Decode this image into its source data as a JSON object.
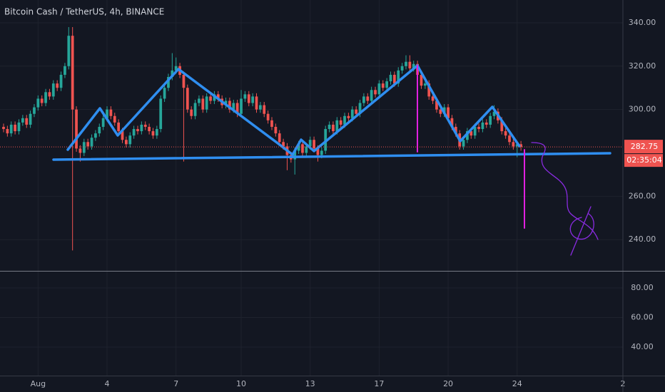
{
  "chart_data": {
    "type": "candlestick",
    "title": "Bitcoin Cash / TetherUS, 4h, BINANCE",
    "up_color": "#26a69a",
    "down_color": "#ef5350",
    "grid": true,
    "xlim": [
      -0.93,
      161.6
    ],
    "xticks": [
      {
        "value": 9,
        "label": "Aug"
      },
      {
        "value": 27,
        "label": "4"
      },
      {
        "value": 45,
        "label": "7"
      },
      {
        "value": 62,
        "label": "10"
      },
      {
        "value": 80,
        "label": "13"
      },
      {
        "value": 98,
        "label": "17"
      },
      {
        "value": 116,
        "label": "20"
      },
      {
        "value": 134,
        "label": "24"
      },
      {
        "value": 161.6,
        "label": "2"
      }
    ],
    "ylim": [
      225.6,
      350.5
    ],
    "yticks": [
      {
        "value": 240,
        "label": "240.00"
      },
      {
        "value": 260,
        "label": "260.00"
      },
      {
        "value": 300,
        "label": "300.00"
      },
      {
        "value": 320,
        "label": "320.00"
      },
      {
        "value": 340,
        "label": "340.00"
      }
    ],
    "y2lim": [
      20.7,
      91.1
    ],
    "y2ticks": [
      {
        "value": 40,
        "label": "40.00"
      },
      {
        "value": 60,
        "label": "60.00"
      },
      {
        "value": 80,
        "label": "80.00"
      }
    ],
    "last_price": 282.75,
    "countdown": "02:35:04",
    "open": [
      292,
      291,
      289,
      293,
      290,
      294,
      296,
      293,
      298,
      301,
      305,
      303,
      308,
      306,
      312,
      310,
      316,
      320,
      334,
      300,
      282,
      280,
      285,
      283,
      287,
      289,
      292,
      296,
      300,
      297,
      294,
      290,
      286,
      284,
      288,
      291,
      290,
      293,
      292,
      290,
      288,
      291,
      305,
      310,
      315,
      318,
      320,
      316,
      310,
      300,
      297,
      303,
      305,
      300,
      306,
      304,
      307,
      305,
      302,
      304,
      300,
      303,
      298,
      305,
      307,
      303,
      306,
      300,
      302,
      298,
      295,
      292,
      289,
      285,
      283,
      279,
      277,
      281,
      284,
      280,
      283,
      286,
      282,
      279,
      281,
      291,
      293,
      290,
      295,
      293,
      297,
      296,
      300,
      298,
      303,
      306,
      304,
      309,
      307,
      312,
      310,
      313,
      316,
      312,
      318,
      320,
      322,
      319,
      321,
      316,
      311,
      312,
      306,
      304,
      300,
      298,
      301,
      296,
      292,
      289,
      283,
      286,
      290,
      288,
      292,
      291,
      294,
      293,
      297,
      299,
      295,
      290,
      288,
      285,
      283,
      284
    ],
    "high": [
      293.5,
      292.5,
      294.5,
      294.5,
      295.5,
      297.5,
      297.5,
      299.5,
      302.5,
      306.5,
      306.5,
      309.5,
      309.5,
      313.5,
      313.5,
      317.5,
      321.5,
      338,
      338,
      301.5,
      283.5,
      286.5,
      286.5,
      288.5,
      290.5,
      293.5,
      297.5,
      301.5,
      301.5,
      298.5,
      295.5,
      291.5,
      287.5,
      289.5,
      292.5,
      292.5,
      294.5,
      294.5,
      293.5,
      291.5,
      292.5,
      306.5,
      311.5,
      316.5,
      326,
      324,
      321.5,
      317.5,
      311.5,
      301.5,
      304.5,
      306.5,
      306.5,
      307.5,
      307.5,
      308.5,
      308.5,
      306.5,
      305.5,
      305.5,
      304.5,
      304.5,
      309,
      308.5,
      308.5,
      307.5,
      307.5,
      303.5,
      303.5,
      299.5,
      296.5,
      293.5,
      290.5,
      286.5,
      284.5,
      280.5,
      282.5,
      285.5,
      285.5,
      284.5,
      287.5,
      287.5,
      283.5,
      282.5,
      292.5,
      294.5,
      294.5,
      296.5,
      296.5,
      298.5,
      298.5,
      301.5,
      301.5,
      304.5,
      307.5,
      307.5,
      310.5,
      310.5,
      313.5,
      313.5,
      314.5,
      317.5,
      317.5,
      319.5,
      321.5,
      325,
      325,
      322.5,
      322.5,
      317.5,
      313.5,
      313.5,
      307.5,
      305.5,
      301.5,
      302.5,
      302.5,
      297.5,
      293.5,
      290.5,
      287.5,
      291.5,
      291.5,
      293.5,
      293.5,
      295.5,
      295.5,
      298.5,
      302,
      300.5,
      296.5,
      291.5,
      289.5,
      286.5,
      285.5,
      285.5
    ],
    "low": [
      289.5,
      287.5,
      287.5,
      288.5,
      288.5,
      292.5,
      291.5,
      291.5,
      296.5,
      299.5,
      301.5,
      301.5,
      304.5,
      304.5,
      308.5,
      308.5,
      314.5,
      318.5,
      235,
      280.5,
      276,
      278.5,
      281.5,
      281.5,
      285.5,
      287.5,
      290.5,
      294.5,
      295.5,
      292.5,
      288.5,
      284.5,
      282.5,
      282.5,
      286.5,
      288.5,
      288.5,
      290.5,
      288.5,
      286.5,
      286.5,
      289.5,
      303.5,
      308.5,
      313.5,
      316.5,
      314.5,
      276,
      298.5,
      295.5,
      295.5,
      301.5,
      298.5,
      298.5,
      302.5,
      302.5,
      303.5,
      300.5,
      300.5,
      298.5,
      298.5,
      296.5,
      296.5,
      303.5,
      301.5,
      301.5,
      298.5,
      298.5,
      296.5,
      293.5,
      290.5,
      287.5,
      283.5,
      281.5,
      272,
      275.5,
      270,
      279.5,
      278.5,
      278.5,
      281.5,
      280.5,
      276,
      277.5,
      279.5,
      289.5,
      288.5,
      288.5,
      291.5,
      291.5,
      294.5,
      294.5,
      296.5,
      296.5,
      301.5,
      302.5,
      302.5,
      305.5,
      305.5,
      308.5,
      308.5,
      311.5,
      310.5,
      310.5,
      316.5,
      318.5,
      317.5,
      317.5,
      314.5,
      309.5,
      309.5,
      304.5,
      302.5,
      298.5,
      296.5,
      296.5,
      294.5,
      290.5,
      287.5,
      281.5,
      281.5,
      284.5,
      286.5,
      286.5,
      289.5,
      289.5,
      291.5,
      291.5,
      295.5,
      293.5,
      288.5,
      286.5,
      283.5,
      281.5,
      278,
      281
    ],
    "close": [
      291,
      289,
      293,
      290,
      294,
      296,
      293,
      298,
      301,
      305,
      303,
      308,
      306,
      312,
      310,
      316,
      320,
      334,
      300,
      282,
      280,
      285,
      283,
      287,
      289,
      292,
      296,
      300,
      297,
      294,
      290,
      286,
      284,
      288,
      291,
      290,
      293,
      292,
      290,
      288,
      291,
      305,
      310,
      315,
      318,
      320,
      316,
      310,
      300,
      297,
      303,
      305,
      300,
      306,
      304,
      307,
      305,
      302,
      304,
      300,
      303,
      298,
      305,
      307,
      303,
      306,
      300,
      302,
      298,
      295,
      292,
      289,
      285,
      283,
      279,
      277,
      281,
      284,
      280,
      283,
      286,
      282,
      279,
      281,
      291,
      293,
      290,
      295,
      293,
      297,
      296,
      300,
      298,
      303,
      306,
      304,
      309,
      307,
      312,
      310,
      313,
      316,
      312,
      318,
      320,
      322,
      319,
      321,
      316,
      311,
      312,
      306,
      304,
      300,
      298,
      301,
      296,
      292,
      289,
      283,
      286,
      290,
      288,
      292,
      291,
      294,
      293,
      297,
      299,
      295,
      290,
      288,
      285,
      283,
      284,
      282.75
    ]
  }
}
